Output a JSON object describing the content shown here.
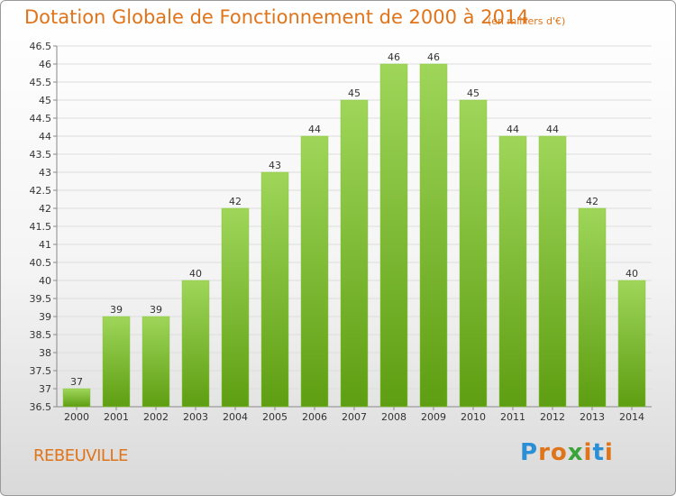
{
  "header": {
    "title": "Dotation Globale de Fonctionnement de 2000 à 2014",
    "unit": "(en milliers d'€)"
  },
  "footer": {
    "commune": "REBEUVILLE",
    "logo": "Proxiti"
  },
  "colors": {
    "title": "#e0741a",
    "bar_top": "#9fd65a",
    "bar_bottom": "#5e9e12",
    "grid": "#dddddd"
  },
  "chart_data": {
    "type": "bar",
    "categories": [
      "2000",
      "2001",
      "2002",
      "2003",
      "2004",
      "2005",
      "2006",
      "2007",
      "2008",
      "2009",
      "2010",
      "2011",
      "2012",
      "2013",
      "2014"
    ],
    "values": [
      37,
      39,
      39,
      40,
      42,
      43,
      44,
      45,
      46,
      46,
      45,
      44,
      44,
      42,
      40
    ],
    "ylim": [
      36.5,
      46.5
    ],
    "yticks": [
      "36.5",
      "37",
      "37.5",
      "38",
      "38.5",
      "39",
      "39.5",
      "40",
      "40.5",
      "41",
      "41.5",
      "42",
      "42.5",
      "43",
      "43.5",
      "44",
      "44.5",
      "45",
      "45.5",
      "46",
      "46.5"
    ],
    "grid": true
  }
}
